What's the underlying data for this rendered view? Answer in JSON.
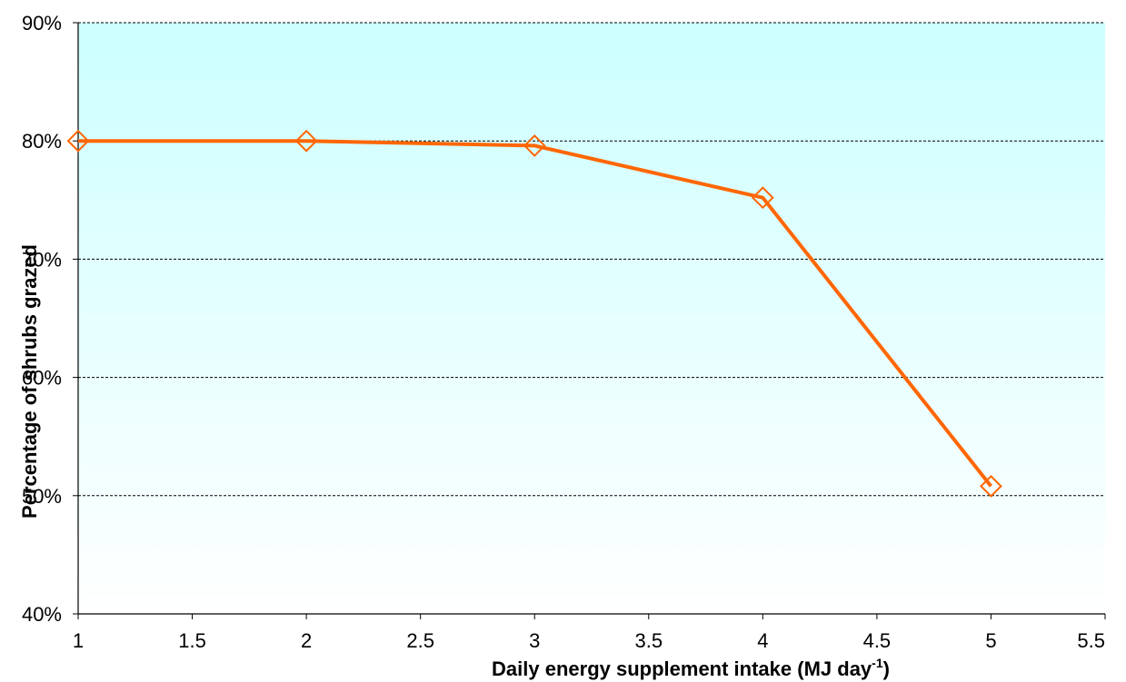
{
  "chart_data": {
    "type": "line",
    "xlabel": "Daily energy supplement intake   (MJ day",
    "xlabel_sup": "-1",
    "xlabel_tail": ")",
    "ylabel": "Percentage of shrubs grazed",
    "xlim": [
      1,
      5.5
    ],
    "ylim": [
      40,
      90
    ],
    "x_ticks": [
      1,
      1.5,
      2,
      2.5,
      3,
      3.5,
      4,
      4.5,
      5,
      5.5
    ],
    "x_tick_labels": [
      "1",
      "1.5",
      "2",
      "2.5",
      "3",
      "3.5",
      "4",
      "4.5",
      "5",
      "5.5"
    ],
    "y_ticks": [
      40,
      50,
      60,
      70,
      80,
      90
    ],
    "y_tick_labels": [
      "40%",
      "50%",
      "60%",
      "70%",
      "80%",
      "90%"
    ],
    "grid": "horizontal dashed",
    "background_gradient": [
      "#ccffff",
      "#ffffff"
    ],
    "series": [
      {
        "color": "#ff6600",
        "marker": "diamond-open",
        "x": [
          1,
          2,
          3,
          4,
          5
        ],
        "y": [
          80,
          80,
          79.6,
          75.2,
          50.8
        ]
      }
    ]
  }
}
